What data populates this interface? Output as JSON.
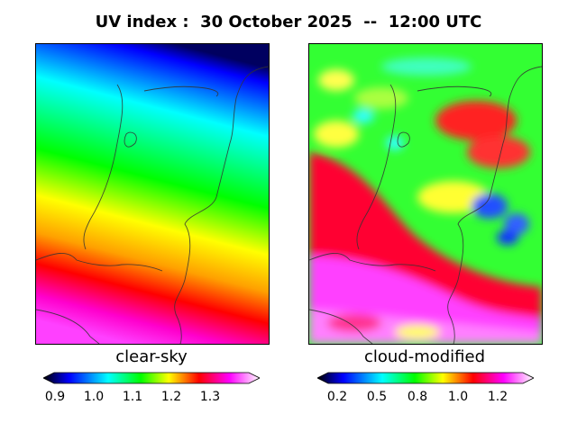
{
  "title": "UV index :  30 October 2025  --  12:00 UTC",
  "panels": [
    {
      "caption": "clear-sky",
      "ticks": [
        "0.9",
        "1.0",
        "1.1",
        "1.2",
        "1.3"
      ],
      "tick_values": [
        0.9,
        1.0,
        1.1,
        1.2,
        1.3
      ],
      "range": [
        0.85,
        1.4
      ]
    },
    {
      "caption": "cloud-modified",
      "ticks": [
        "0.2",
        "0.5",
        "0.8",
        "1.0",
        "1.2"
      ],
      "tick_values": [
        0.2,
        0.5,
        0.8,
        1.0,
        1.2
      ],
      "range": [
        0.1,
        1.35
      ]
    }
  ],
  "colors": {
    "scale": [
      "#000000",
      "#0000ff",
      "#00ffff",
      "#00ff00",
      "#ffff00",
      "#ff0000",
      "#ff00ff",
      "#ffffff"
    ]
  }
}
